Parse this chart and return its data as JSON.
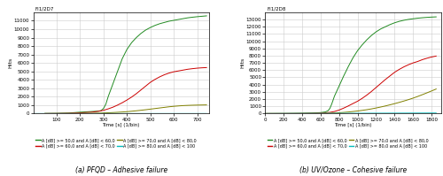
{
  "plot_a": {
    "title": "FI1/2D7",
    "xlabel": "Time [s] (1/bin)",
    "ylabel": "Hits",
    "xlim": [
      0,
      750
    ],
    "ylim": [
      0,
      12000
    ],
    "xticks": [
      100,
      200,
      300,
      400,
      500,
      600,
      700
    ],
    "yticks": [
      0,
      1000,
      2000,
      3000,
      4000,
      5000,
      6000,
      7000,
      8000,
      9000,
      10000,
      11000
    ],
    "subtitle": "(a) PFQD – Adhesive failure",
    "lines": {
      "green": {
        "x": [
          50,
          100,
          150,
          200,
          250,
          270,
          280,
          290,
          300,
          310,
          320,
          340,
          360,
          380,
          400,
          420,
          440,
          460,
          480,
          500,
          520,
          540,
          560,
          580,
          600,
          620,
          640,
          660,
          680,
          700,
          720,
          740
        ],
        "y": [
          5,
          20,
          60,
          160,
          240,
          270,
          290,
          350,
          600,
          1100,
          2000,
          3500,
          5000,
          6500,
          7600,
          8400,
          9000,
          9500,
          9900,
          10200,
          10450,
          10650,
          10800,
          10950,
          11050,
          11150,
          11250,
          11350,
          11420,
          11480,
          11530,
          11580
        ]
      },
      "red": {
        "x": [
          50,
          100,
          150,
          200,
          250,
          280,
          300,
          320,
          340,
          360,
          380,
          400,
          420,
          440,
          460,
          480,
          500,
          520,
          540,
          560,
          580,
          600,
          620,
          640,
          660,
          680,
          700,
          720,
          740
        ],
        "y": [
          3,
          10,
          30,
          80,
          160,
          270,
          380,
          550,
          750,
          1000,
          1280,
          1600,
          1950,
          2350,
          2800,
          3250,
          3700,
          4050,
          4350,
          4600,
          4800,
          4950,
          5050,
          5150,
          5250,
          5320,
          5380,
          5420,
          5450
        ]
      },
      "olive": {
        "x": [
          50,
          100,
          150,
          200,
          250,
          280,
          300,
          320,
          340,
          360,
          380,
          400,
          420,
          440,
          460,
          480,
          500,
          520,
          540,
          560,
          580,
          600,
          620,
          640,
          660,
          680,
          700,
          720,
          740
        ],
        "y": [
          1,
          3,
          8,
          15,
          30,
          50,
          70,
          90,
          115,
          145,
          180,
          220,
          270,
          325,
          385,
          450,
          520,
          590,
          660,
          730,
          800,
          855,
          900,
          940,
          965,
          985,
          1000,
          1012,
          1022
        ]
      },
      "cyan": {
        "x": [
          0,
          740
        ],
        "y": [
          0,
          3
        ]
      }
    },
    "legend_left": [
      {
        "label": "A [dB] >= 50,0 and A [dB] < 60,0",
        "color": "#228B22"
      },
      {
        "label": "A [dB] >= 70,0 and A [dB] < 80,0",
        "color": "#808000"
      }
    ],
    "legend_right": [
      {
        "label": "A [dB] >= 60,0 and A [dB] < 70,0",
        "color": "#CC0000"
      },
      {
        "label": "A [dB] >= 80,0 and A [dB] < 100",
        "color": "#00BBBB"
      }
    ]
  },
  "plot_b": {
    "title": "FI1/2D8",
    "xlabel": "Time [s] (1/bin)",
    "ylabel": "Hits",
    "xlim": [
      0,
      1900
    ],
    "ylim": [
      0,
      14000
    ],
    "xticks": [
      0,
      200,
      400,
      600,
      800,
      1000,
      1200,
      1400,
      1600,
      1800
    ],
    "yticks": [
      0,
      1000,
      2000,
      3000,
      4000,
      5000,
      6000,
      7000,
      8000,
      9000,
      10000,
      11000,
      12000,
      13000
    ],
    "subtitle": "(b) UV/Ozone – Cohesive failure",
    "lines": {
      "green": {
        "x": [
          0,
          100,
          200,
          300,
          400,
          500,
          600,
          650,
          680,
          700,
          720,
          750,
          800,
          850,
          900,
          950,
          1000,
          1050,
          1100,
          1150,
          1200,
          1250,
          1300,
          1350,
          1400,
          1450,
          1500,
          1550,
          1600,
          1650,
          1700,
          1750,
          1800,
          1850
        ],
        "y": [
          0,
          3,
          8,
          18,
          35,
          70,
          130,
          220,
          380,
          700,
          1300,
          2400,
          3800,
          5200,
          6500,
          7700,
          8700,
          9500,
          10200,
          10800,
          11300,
          11700,
          12000,
          12300,
          12550,
          12750,
          12900,
          13020,
          13110,
          13190,
          13250,
          13300,
          13340,
          13370
        ]
      },
      "red": {
        "x": [
          0,
          100,
          200,
          300,
          400,
          500,
          600,
          650,
          700,
          750,
          800,
          850,
          900,
          950,
          1000,
          1050,
          1100,
          1150,
          1200,
          1250,
          1300,
          1350,
          1400,
          1450,
          1500,
          1550,
          1600,
          1650,
          1700,
          1750,
          1800,
          1850
        ],
        "y": [
          0,
          1,
          3,
          8,
          15,
          30,
          60,
          100,
          160,
          280,
          480,
          750,
          1050,
          1380,
          1700,
          2100,
          2550,
          3050,
          3600,
          4150,
          4700,
          5200,
          5700,
          6100,
          6450,
          6750,
          7000,
          7200,
          7450,
          7650,
          7820,
          7950
        ]
      },
      "olive": {
        "x": [
          0,
          100,
          200,
          300,
          400,
          500,
          600,
          650,
          700,
          750,
          800,
          850,
          900,
          950,
          1000,
          1050,
          1100,
          1150,
          1200,
          1250,
          1300,
          1350,
          1400,
          1450,
          1500,
          1550,
          1600,
          1650,
          1700,
          1750,
          1800,
          1850
        ],
        "y": [
          0,
          0,
          1,
          3,
          7,
          12,
          20,
          32,
          50,
          75,
          110,
          155,
          210,
          275,
          350,
          435,
          530,
          640,
          765,
          900,
          1045,
          1200,
          1365,
          1540,
          1725,
          1920,
          2130,
          2360,
          2605,
          2860,
          3120,
          3390
        ]
      },
      "cyan": {
        "x": [
          0,
          1850
        ],
        "y": [
          0,
          70
        ]
      }
    },
    "legend_left": [
      {
        "label": "A [dB] >= 50,0 and A [dB] < 60,0",
        "color": "#228B22"
      },
      {
        "label": "A [dB] >= 70,0 and A [dB] < 80,0",
        "color": "#808000"
      }
    ],
    "legend_right": [
      {
        "label": "A [dB] >= 60,0 and A [dB] < 70,0",
        "color": "#CC0000"
      },
      {
        "label": "A [dB] >= 80,0 and A [dB] < 100",
        "color": "#00BBBB"
      }
    ]
  },
  "bg_color": "#f5f5f5",
  "grid_color": "#cccccc"
}
